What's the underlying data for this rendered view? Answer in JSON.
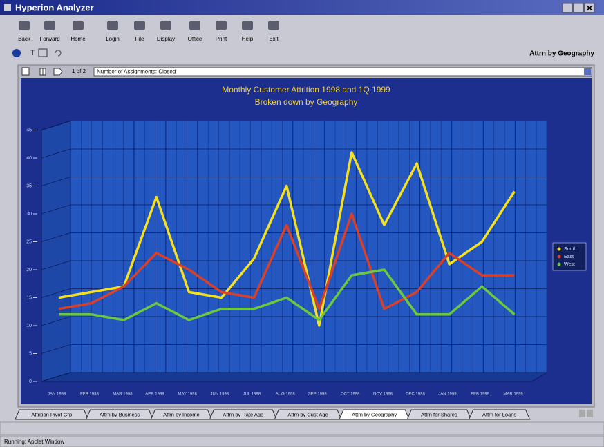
{
  "window": {
    "title": "Hyperion Analyzer"
  },
  "toolbar": {
    "buttons": [
      "Back",
      "Forward",
      "Home",
      "Login",
      "File",
      "Display",
      "Office",
      "Print",
      "Help",
      "Exit"
    ],
    "view_title": "Attrn by Geography"
  },
  "report_bar": {
    "page": "1 of 2",
    "selector": "Number of Assignments: Closed"
  },
  "chart_data": {
    "type": "line",
    "title": "Monthly Customer Attrition 1998 and 1Q 1999",
    "subtitle": "Broken down by Geography",
    "categories": [
      "JAN 1998",
      "FEB 1998",
      "MAR 1998",
      "APR 1998",
      "MAY 1998",
      "JUN 1998",
      "JUL 1998",
      "AUG 1998",
      "SEP 1998",
      "OCT 1998",
      "NOV 1998",
      "DEC 1998",
      "JAN 1999",
      "FEB 1999",
      "MAR 1999"
    ],
    "series": [
      {
        "name": "South",
        "color": "#f5e020",
        "values": [
          15,
          16,
          17,
          33,
          16,
          15,
          22,
          35,
          10,
          41,
          28,
          39,
          21,
          25,
          34
        ]
      },
      {
        "name": "East",
        "color": "#d8402a",
        "values": [
          13,
          14,
          17,
          23,
          20,
          16,
          15,
          28,
          13,
          30,
          13,
          16,
          23,
          19,
          19
        ]
      },
      {
        "name": "West",
        "color": "#6cc840",
        "values": [
          12,
          12,
          11,
          14,
          11,
          13,
          13,
          15,
          11,
          19,
          20,
          12,
          12,
          17,
          12
        ]
      }
    ],
    "ylim": [
      0,
      45
    ],
    "yticks": [
      0,
      5,
      10,
      15,
      20,
      25,
      30,
      35,
      40,
      45
    ],
    "grid": true,
    "legend": "right"
  },
  "tabs": [
    "Attrition Pivot Grp",
    "Attrn by Business",
    "Attrn by Income",
    "Attrn by Rate Age",
    "Attrn by Cust Age",
    "Attrn by Geography",
    "Attrn for Shares",
    "Attrn for Loans"
  ],
  "active_tab": 5,
  "status": "Running: Applet Window"
}
